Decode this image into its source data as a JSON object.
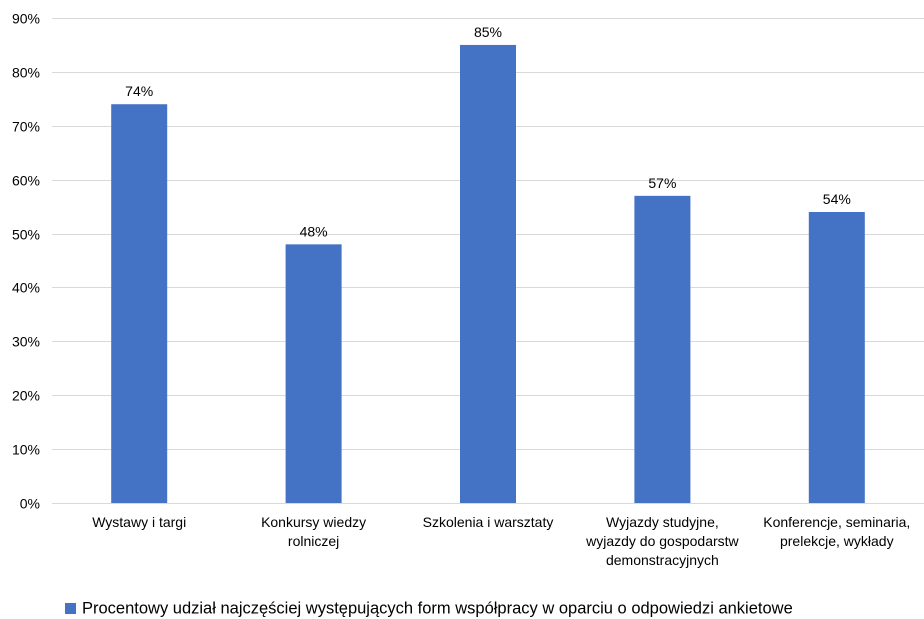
{
  "chart_data": {
    "type": "bar",
    "categories": [
      [
        "Wystawy i targi"
      ],
      [
        "Konkursy wiedzy",
        "rolniczej"
      ],
      [
        "Szkolenia i warsztaty"
      ],
      [
        "Wyjazdy studyjne,",
        "wyjazdy do gospodarstw",
        "demonstracyjnych"
      ],
      [
        "Konferencje, seminaria,",
        "prelekcje, wykłady"
      ]
    ],
    "series": [
      {
        "name": "Procentowy udział najczęściej występujących form współpracy w oparciu o odpowiedzi ankietowe",
        "values": [
          74,
          48,
          85,
          57,
          54
        ],
        "value_labels": [
          "74%",
          "48%",
          "85%",
          "57%",
          "54%"
        ],
        "color": "#4472c4"
      }
    ],
    "y_ticks": [
      "0%",
      "10%",
      "20%",
      "30%",
      "40%",
      "50%",
      "60%",
      "70%",
      "80%",
      "90%"
    ],
    "ylim": [
      0,
      90
    ],
    "grid": true,
    "legend_position": "bottom"
  }
}
